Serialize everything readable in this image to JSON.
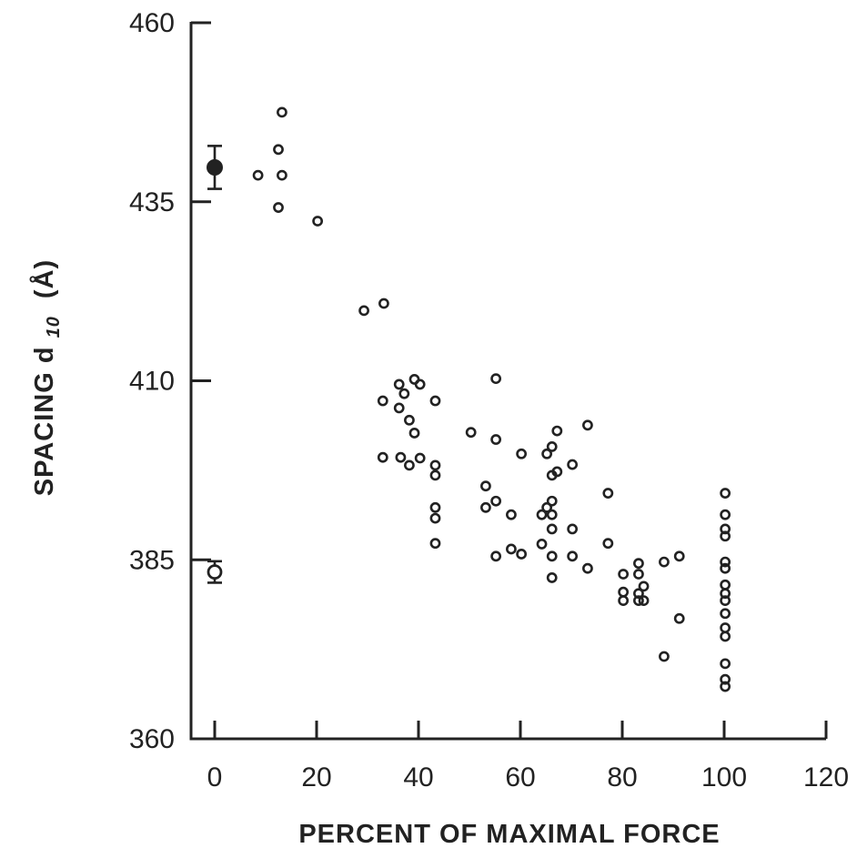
{
  "chart_data": {
    "type": "scatter",
    "title": "",
    "xlabel": "PERCENT OF MAXIMAL FORCE",
    "ylabel_main": "SPACING d",
    "ylabel_sub": "10",
    "ylabel_unit": "(Å)",
    "xlim": [
      0,
      120
    ],
    "ylim": [
      360,
      460
    ],
    "xticks": [
      0,
      20,
      40,
      60,
      80,
      100,
      120
    ],
    "yticks": [
      360,
      385,
      410,
      435,
      460
    ],
    "grid": false,
    "series": [
      {
        "marker": "filled-circle-with-error-bar",
        "points": [
          {
            "x": 0,
            "y": 439.8,
            "err": 3.0
          }
        ]
      },
      {
        "marker": "open-circle-with-error-bar",
        "points": [
          {
            "x": 0,
            "y": 383.3,
            "err": 1.5
          }
        ]
      },
      {
        "marker": "small-open-circle",
        "points": [
          {
            "x": 8.5,
            "y": 438.7
          },
          {
            "x": 12.5,
            "y": 442.3
          },
          {
            "x": 12.5,
            "y": 434.2
          },
          {
            "x": 13.2,
            "y": 447.5
          },
          {
            "x": 13.2,
            "y": 438.7
          },
          {
            "x": 20.2,
            "y": 432.3
          },
          {
            "x": 29.3,
            "y": 419.8
          },
          {
            "x": 33.2,
            "y": 420.8
          },
          {
            "x": 33.0,
            "y": 407.2
          },
          {
            "x": 33.0,
            "y": 399.3
          },
          {
            "x": 36.2,
            "y": 409.5
          },
          {
            "x": 36.2,
            "y": 406.2
          },
          {
            "x": 36.5,
            "y": 399.3
          },
          {
            "x": 37.2,
            "y": 408.2
          },
          {
            "x": 38.2,
            "y": 404.5
          },
          {
            "x": 38.2,
            "y": 398.2
          },
          {
            "x": 39.2,
            "y": 410.2
          },
          {
            "x": 39.2,
            "y": 402.7
          },
          {
            "x": 40.3,
            "y": 409.5
          },
          {
            "x": 40.3,
            "y": 399.2
          },
          {
            "x": 43.3,
            "y": 407.2
          },
          {
            "x": 43.3,
            "y": 398.2
          },
          {
            "x": 43.3,
            "y": 396.8
          },
          {
            "x": 43.3,
            "y": 392.3
          },
          {
            "x": 43.3,
            "y": 390.8
          },
          {
            "x": 43.3,
            "y": 387.3
          },
          {
            "x": 50.3,
            "y": 402.8
          },
          {
            "x": 53.2,
            "y": 395.3
          },
          {
            "x": 53.2,
            "y": 392.3
          },
          {
            "x": 55.2,
            "y": 410.3
          },
          {
            "x": 55.2,
            "y": 401.8
          },
          {
            "x": 55.2,
            "y": 393.2
          },
          {
            "x": 55.2,
            "y": 385.5
          },
          {
            "x": 58.2,
            "y": 391.3
          },
          {
            "x": 58.2,
            "y": 386.5
          },
          {
            "x": 60.2,
            "y": 399.8
          },
          {
            "x": 60.2,
            "y": 385.8
          },
          {
            "x": 64.2,
            "y": 391.3
          },
          {
            "x": 64.2,
            "y": 387.2
          },
          {
            "x": 65.2,
            "y": 399.8
          },
          {
            "x": 65.2,
            "y": 392.3
          },
          {
            "x": 66.2,
            "y": 400.8
          },
          {
            "x": 66.2,
            "y": 396.8
          },
          {
            "x": 66.2,
            "y": 393.2
          },
          {
            "x": 66.2,
            "y": 391.3
          },
          {
            "x": 66.2,
            "y": 389.3
          },
          {
            "x": 66.2,
            "y": 385.5
          },
          {
            "x": 66.2,
            "y": 382.5
          },
          {
            "x": 67.2,
            "y": 403.0
          },
          {
            "x": 67.2,
            "y": 397.3
          },
          {
            "x": 70.2,
            "y": 398.3
          },
          {
            "x": 70.2,
            "y": 389.3
          },
          {
            "x": 70.2,
            "y": 385.5
          },
          {
            "x": 73.2,
            "y": 403.8
          },
          {
            "x": 73.2,
            "y": 383.8
          },
          {
            "x": 77.2,
            "y": 394.3
          },
          {
            "x": 77.2,
            "y": 387.3
          },
          {
            "x": 80.2,
            "y": 383.0
          },
          {
            "x": 80.2,
            "y": 380.5
          },
          {
            "x": 80.2,
            "y": 379.3
          },
          {
            "x": 83.2,
            "y": 384.5
          },
          {
            "x": 83.2,
            "y": 383.0
          },
          {
            "x": 83.2,
            "y": 380.3
          },
          {
            "x": 83.2,
            "y": 379.3
          },
          {
            "x": 84.2,
            "y": 381.3
          },
          {
            "x": 84.2,
            "y": 379.3
          },
          {
            "x": 88.2,
            "y": 384.7
          },
          {
            "x": 88.2,
            "y": 371.5
          },
          {
            "x": 91.2,
            "y": 385.5
          },
          {
            "x": 91.2,
            "y": 376.8
          },
          {
            "x": 100.2,
            "y": 394.3
          },
          {
            "x": 100.2,
            "y": 391.3
          },
          {
            "x": 100.2,
            "y": 389.3
          },
          {
            "x": 100.2,
            "y": 388.3
          },
          {
            "x": 100.2,
            "y": 384.7
          },
          {
            "x": 100.2,
            "y": 383.8
          },
          {
            "x": 100.2,
            "y": 381.5
          },
          {
            "x": 100.2,
            "y": 380.3
          },
          {
            "x": 100.2,
            "y": 379.3
          },
          {
            "x": 100.2,
            "y": 377.5
          },
          {
            "x": 100.2,
            "y": 375.5
          },
          {
            "x": 100.2,
            "y": 374.3
          },
          {
            "x": 100.2,
            "y": 370.5
          },
          {
            "x": 100.2,
            "y": 368.3
          },
          {
            "x": 100.2,
            "y": 367.3
          }
        ]
      }
    ]
  }
}
